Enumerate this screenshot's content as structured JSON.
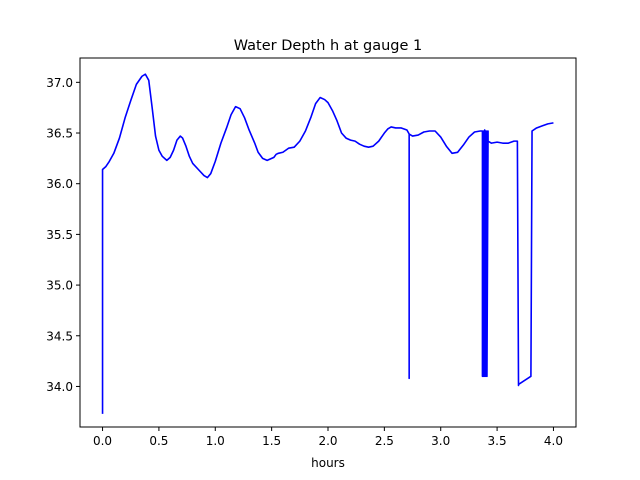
{
  "chart_data": {
    "type": "line",
    "title": "Water Depth h at gauge 1",
    "xlabel": "hours",
    "ylabel": "",
    "xlim": [
      -0.2,
      4.2
    ],
    "ylim": [
      33.6,
      37.24
    ],
    "grid": false,
    "x_ticks": [
      0.0,
      0.5,
      1.0,
      1.5,
      2.0,
      2.5,
      3.0,
      3.5,
      4.0
    ],
    "x_tick_labels": [
      "0.0",
      "0.5",
      "1.0",
      "1.5",
      "2.0",
      "2.5",
      "3.0",
      "3.5",
      "4.0"
    ],
    "y_ticks": [
      34.0,
      34.5,
      35.0,
      35.5,
      36.0,
      36.5,
      37.0
    ],
    "y_tick_labels": [
      "34.0",
      "34.5",
      "35.0",
      "35.5",
      "36.0",
      "36.5",
      "37.0"
    ],
    "colors": {
      "line": "#0000ff",
      "axes": "#000000",
      "background": "#ffffff"
    },
    "series": [
      {
        "name": "",
        "x": [
          0.0,
          0.0,
          0.03,
          0.06,
          0.1,
          0.15,
          0.2,
          0.25,
          0.3,
          0.35,
          0.38,
          0.41,
          0.44,
          0.47,
          0.5,
          0.53,
          0.57,
          0.6,
          0.63,
          0.66,
          0.69,
          0.71,
          0.74,
          0.77,
          0.8,
          0.85,
          0.9,
          0.93,
          0.96,
          1.0,
          1.05,
          1.1,
          1.14,
          1.18,
          1.22,
          1.26,
          1.3,
          1.35,
          1.38,
          1.42,
          1.46,
          1.5,
          1.52,
          1.54,
          1.56,
          1.6,
          1.65,
          1.7,
          1.75,
          1.8,
          1.85,
          1.89,
          1.93,
          1.97,
          2.0,
          2.04,
          2.08,
          2.12,
          2.16,
          2.2,
          2.24,
          2.28,
          2.32,
          2.36,
          2.4,
          2.45,
          2.5,
          2.53,
          2.56,
          2.6,
          2.65,
          2.7,
          2.72,
          2.72,
          2.72,
          2.75,
          2.8,
          2.85,
          2.9,
          2.95,
          3.0,
          3.05,
          3.1,
          3.15,
          3.2,
          3.25,
          3.3,
          3.35,
          3.37,
          3.37,
          3.38,
          3.38,
          3.39,
          3.39,
          3.4,
          3.4,
          3.41,
          3.41,
          3.42,
          3.42,
          3.45,
          3.5,
          3.55,
          3.6,
          3.65,
          3.68,
          3.69,
          3.69,
          3.8,
          3.81,
          3.81,
          3.85,
          3.9,
          3.95,
          4.0
        ],
        "y": [
          33.73,
          36.14,
          36.17,
          36.22,
          36.3,
          36.45,
          36.65,
          36.82,
          36.98,
          37.06,
          37.08,
          37.02,
          36.75,
          36.47,
          36.33,
          36.27,
          36.23,
          36.26,
          36.33,
          36.43,
          36.47,
          36.45,
          36.37,
          36.27,
          36.2,
          36.14,
          36.08,
          36.06,
          36.1,
          36.22,
          36.4,
          36.55,
          36.68,
          36.76,
          36.74,
          36.65,
          36.53,
          36.4,
          36.31,
          36.25,
          36.23,
          36.25,
          36.26,
          36.29,
          36.3,
          36.31,
          36.35,
          36.36,
          36.42,
          36.52,
          36.66,
          36.79,
          36.85,
          36.83,
          36.8,
          36.72,
          36.62,
          36.5,
          36.45,
          36.43,
          36.42,
          36.39,
          36.37,
          36.36,
          36.37,
          36.42,
          36.5,
          36.54,
          36.56,
          36.55,
          36.55,
          36.53,
          36.49,
          34.08,
          36.49,
          36.47,
          36.48,
          36.51,
          36.52,
          36.52,
          36.46,
          36.37,
          36.3,
          36.31,
          36.38,
          36.46,
          36.51,
          36.52,
          36.52,
          34.1,
          36.52,
          34.1,
          36.53,
          34.1,
          36.52,
          34.1,
          36.52,
          34.1,
          36.52,
          36.42,
          36.4,
          36.41,
          36.4,
          36.4,
          36.42,
          36.42,
          34.01,
          34.02,
          34.1,
          36.5,
          36.52,
          36.55,
          36.57,
          36.59,
          36.6
        ]
      }
    ]
  }
}
